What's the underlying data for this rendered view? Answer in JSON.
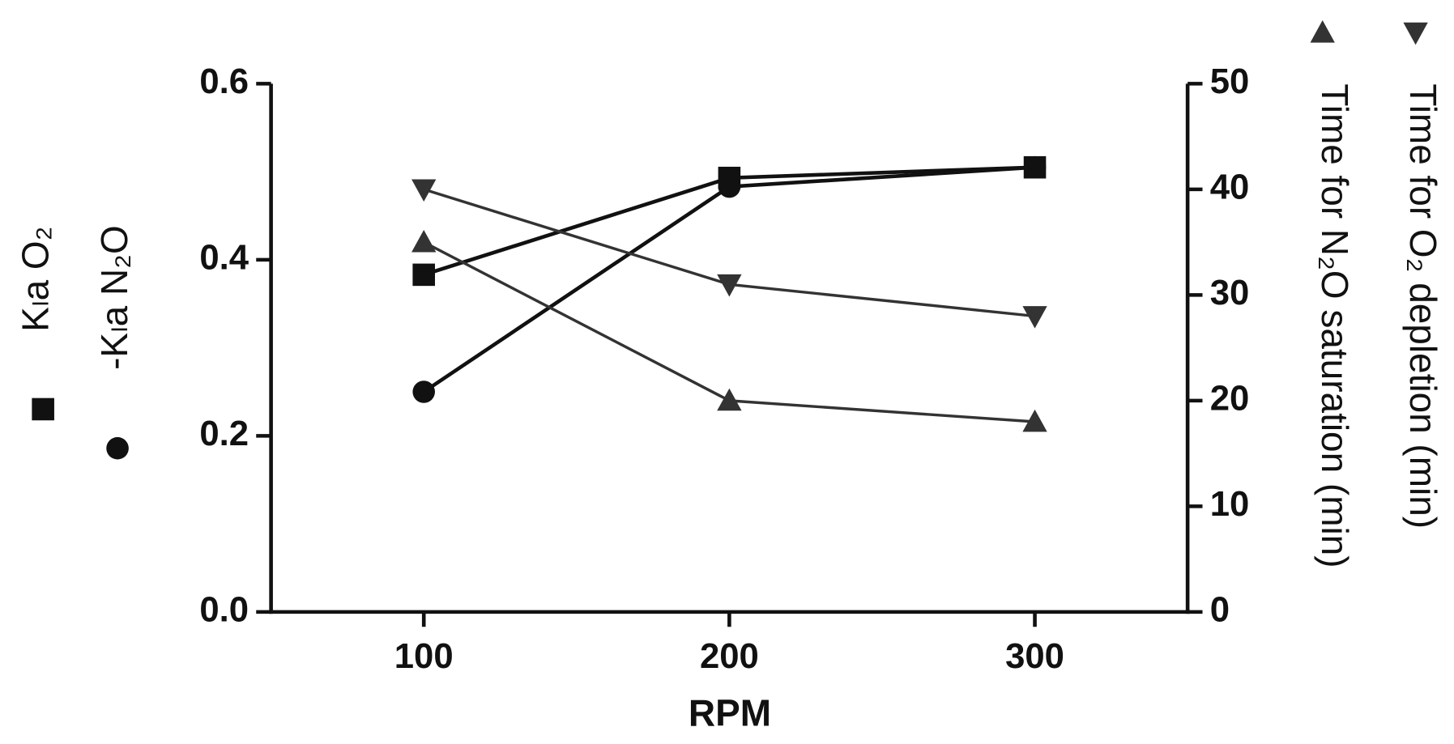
{
  "chart_data": {
    "type": "line",
    "x_label": "RPM",
    "x": [
      100,
      200,
      300
    ],
    "xlim": [
      50,
      350
    ],
    "xticks": [
      100,
      200,
      300
    ],
    "ylim": [
      0,
      0.6
    ],
    "yticks": [
      0.0,
      0.2,
      0.4,
      0.6
    ],
    "y2lim": [
      0,
      50
    ],
    "y2ticks": [
      0,
      10,
      20,
      30,
      40,
      50
    ],
    "series": [
      {
        "name": "Kₗa O₂",
        "color": "#111111",
        "marker": "square",
        "values": [
          0.383,
          0.493,
          0.505
        ]
      },
      {
        "name": "-Kₗa N₂O",
        "color": "#111111",
        "marker": "circle",
        "values": [
          0.25,
          0.483,
          0.505
        ]
      },
      {
        "name": "Time for N₂O saturation (min)",
        "color": "#333333",
        "marker": "triangle-up",
        "axis": "y2",
        "values": [
          35,
          20,
          18
        ]
      },
      {
        "name": "Time for O₂ depletion (min)",
        "color": "#333333",
        "marker": "triangle-down",
        "axis": "y2",
        "values": [
          40,
          31,
          28
        ]
      }
    ]
  }
}
